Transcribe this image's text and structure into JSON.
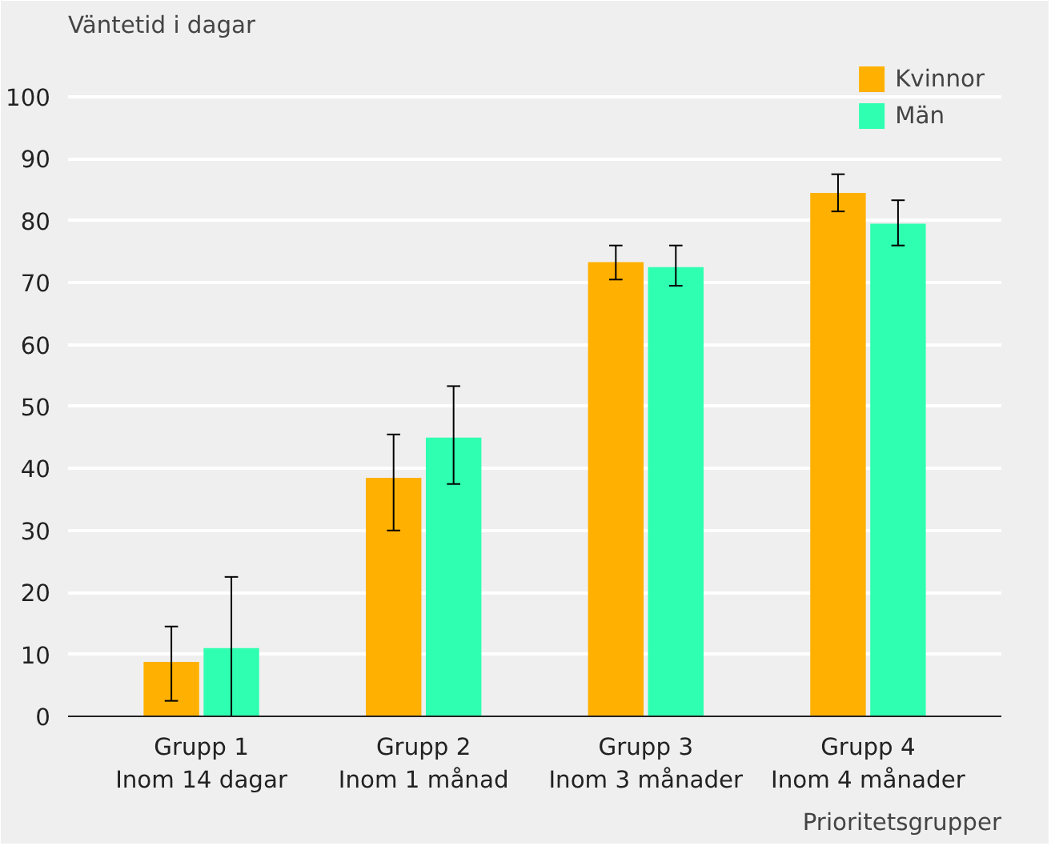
{
  "chart_data": {
    "type": "bar",
    "ylabel": "Väntetid i dagar",
    "xlabel": "Prioritetsgrupper",
    "categories": [
      "Grupp 1\nInom 14 dagar",
      "Grupp 2\nInom 1 månad",
      "Grupp 3\nInom 3 månader",
      "Grupp 4\nInom 4 månader"
    ],
    "series": [
      {
        "name": "Kvinnor",
        "color": "#ffb000",
        "values": [
          8.8,
          38.5,
          73.3,
          84.5
        ],
        "errors": [
          [
            2.5,
            14.5
          ],
          [
            30,
            45.5
          ],
          [
            70.5,
            76
          ],
          [
            81.5,
            87.5
          ]
        ]
      },
      {
        "name": "Män",
        "color": "#2effb0",
        "values": [
          11,
          45,
          72.5,
          79.5
        ],
        "errors": [
          [
            0,
            22.5
          ],
          [
            37.5,
            53.3
          ],
          [
            69.5,
            76
          ],
          [
            76,
            83.3
          ]
        ]
      }
    ],
    "ylim": [
      0,
      108
    ],
    "yticks": [
      0,
      10,
      20,
      30,
      40,
      50,
      60,
      70,
      80,
      90,
      100
    ],
    "grid": "y",
    "legend": "top right"
  }
}
